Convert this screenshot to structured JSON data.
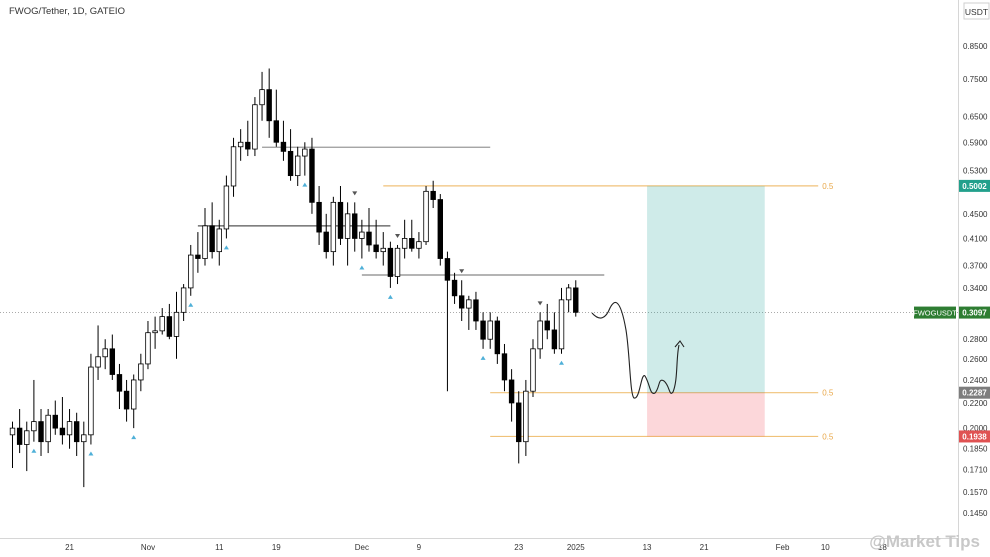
{
  "header": {
    "title": "FWOG/Tether, 1D, GATEIO"
  },
  "quote_currency": "USDT",
  "watermark": "@Market Tips",
  "chart_data": {
    "type": "candlestick",
    "title": "FWOG/Tether, 1D, GATEIO",
    "y_scale": "log",
    "ylim": [
      0.135,
      0.93
    ],
    "y_ticks": [
      "0.8500",
      "0.7500",
      "0.6500",
      "0.5900",
      "0.5300",
      "0.4500",
      "0.4100",
      "0.3700",
      "0.3400",
      "0.3097",
      "0.2800",
      "0.2600",
      "0.2400",
      "0.2200",
      "0.2000",
      "0.1850",
      "0.1710",
      "0.1570",
      "0.1450"
    ],
    "x_labels": [
      {
        "label": "21",
        "day": 8
      },
      {
        "label": "Nov",
        "day": 19
      },
      {
        "label": "11",
        "day": 29
      },
      {
        "label": "19",
        "day": 37
      },
      {
        "label": "Dec",
        "day": 49
      },
      {
        "label": "9",
        "day": 57
      },
      {
        "label": "23",
        "day": 71
      },
      {
        "label": "2025",
        "day": 79
      },
      {
        "label": "13",
        "day": 89
      },
      {
        "label": "21",
        "day": 97
      },
      {
        "label": "Feb",
        "day": 108
      },
      {
        "label": "10",
        "day": 114
      },
      {
        "label": "18",
        "day": 122
      }
    ],
    "candles": [
      [
        0.195,
        0.205,
        0.172,
        0.2
      ],
      [
        0.2,
        0.215,
        0.182,
        0.188
      ],
      [
        0.188,
        0.205,
        0.17,
        0.198
      ],
      [
        0.198,
        0.24,
        0.19,
        0.205
      ],
      [
        0.205,
        0.215,
        0.18,
        0.19
      ],
      [
        0.19,
        0.215,
        0.182,
        0.21
      ],
      [
        0.21,
        0.222,
        0.195,
        0.2
      ],
      [
        0.2,
        0.225,
        0.188,
        0.195
      ],
      [
        0.195,
        0.215,
        0.185,
        0.205
      ],
      [
        0.205,
        0.212,
        0.18,
        0.19
      ],
      [
        0.19,
        0.205,
        0.16,
        0.195
      ],
      [
        0.195,
        0.265,
        0.188,
        0.252
      ],
      [
        0.252,
        0.295,
        0.24,
        0.262
      ],
      [
        0.262,
        0.28,
        0.25,
        0.27
      ],
      [
        0.27,
        0.285,
        0.24,
        0.245
      ],
      [
        0.245,
        0.255,
        0.215,
        0.23
      ],
      [
        0.23,
        0.24,
        0.205,
        0.215
      ],
      [
        0.215,
        0.245,
        0.2,
        0.24
      ],
      [
        0.24,
        0.265,
        0.23,
        0.255
      ],
      [
        0.255,
        0.3,
        0.25,
        0.287
      ],
      [
        0.287,
        0.305,
        0.27,
        0.289
      ],
      [
        0.289,
        0.315,
        0.285,
        0.305
      ],
      [
        0.305,
        0.32,
        0.28,
        0.283
      ],
      [
        0.283,
        0.335,
        0.26,
        0.31
      ],
      [
        0.31,
        0.345,
        0.3,
        0.34
      ],
      [
        0.34,
        0.4,
        0.33,
        0.385
      ],
      [
        0.385,
        0.42,
        0.36,
        0.38
      ],
      [
        0.38,
        0.46,
        0.37,
        0.43
      ],
      [
        0.43,
        0.47,
        0.38,
        0.39
      ],
      [
        0.39,
        0.44,
        0.37,
        0.425
      ],
      [
        0.425,
        0.52,
        0.41,
        0.5
      ],
      [
        0.5,
        0.6,
        0.48,
        0.58
      ],
      [
        0.58,
        0.62,
        0.55,
        0.59
      ],
      [
        0.59,
        0.64,
        0.56,
        0.575
      ],
      [
        0.575,
        0.7,
        0.56,
        0.68
      ],
      [
        0.68,
        0.77,
        0.64,
        0.72
      ],
      [
        0.72,
        0.78,
        0.6,
        0.64
      ],
      [
        0.64,
        0.72,
        0.58,
        0.59
      ],
      [
        0.59,
        0.64,
        0.55,
        0.57
      ],
      [
        0.57,
        0.62,
        0.51,
        0.52
      ],
      [
        0.52,
        0.58,
        0.5,
        0.56
      ],
      [
        0.56,
        0.59,
        0.52,
        0.575
      ],
      [
        0.575,
        0.6,
        0.45,
        0.47
      ],
      [
        0.47,
        0.5,
        0.4,
        0.42
      ],
      [
        0.42,
        0.45,
        0.38,
        0.39
      ],
      [
        0.39,
        0.48,
        0.37,
        0.47
      ],
      [
        0.47,
        0.5,
        0.4,
        0.41
      ],
      [
        0.41,
        0.47,
        0.37,
        0.45
      ],
      [
        0.45,
        0.47,
        0.39,
        0.41
      ],
      [
        0.41,
        0.44,
        0.38,
        0.42
      ],
      [
        0.42,
        0.46,
        0.39,
        0.4
      ],
      [
        0.4,
        0.44,
        0.38,
        0.39
      ],
      [
        0.39,
        0.42,
        0.37,
        0.395
      ],
      [
        0.395,
        0.405,
        0.34,
        0.355
      ],
      [
        0.355,
        0.4,
        0.345,
        0.395
      ],
      [
        0.395,
        0.44,
        0.38,
        0.41
      ],
      [
        0.41,
        0.44,
        0.39,
        0.395
      ],
      [
        0.395,
        0.42,
        0.38,
        0.405
      ],
      [
        0.405,
        0.5,
        0.4,
        0.49
      ],
      [
        0.49,
        0.51,
        0.46,
        0.475
      ],
      [
        0.475,
        0.485,
        0.37,
        0.38
      ],
      [
        0.38,
        0.39,
        0.23,
        0.35
      ],
      [
        0.35,
        0.36,
        0.32,
        0.33
      ],
      [
        0.33,
        0.35,
        0.3,
        0.315
      ],
      [
        0.315,
        0.33,
        0.29,
        0.325
      ],
      [
        0.325,
        0.335,
        0.29,
        0.3
      ],
      [
        0.3,
        0.31,
        0.27,
        0.28
      ],
      [
        0.28,
        0.31,
        0.27,
        0.3
      ],
      [
        0.3,
        0.305,
        0.255,
        0.265
      ],
      [
        0.265,
        0.275,
        0.23,
        0.24
      ],
      [
        0.24,
        0.25,
        0.205,
        0.22
      ],
      [
        0.22,
        0.23,
        0.175,
        0.19
      ],
      [
        0.19,
        0.24,
        0.18,
        0.23
      ],
      [
        0.23,
        0.28,
        0.225,
        0.27
      ],
      [
        0.27,
        0.31,
        0.26,
        0.3
      ],
      [
        0.3,
        0.32,
        0.28,
        0.29
      ],
      [
        0.29,
        0.31,
        0.265,
        0.27
      ],
      [
        0.27,
        0.34,
        0.265,
        0.325
      ],
      [
        0.325,
        0.345,
        0.31,
        0.34
      ],
      [
        0.34,
        0.35,
        0.305,
        0.31
      ]
    ],
    "horizontal_levels": [
      {
        "price": 0.579,
        "from_day": 35,
        "to_day": 67,
        "color": "#9a9a9a"
      },
      {
        "price": 0.43,
        "from_day": 26,
        "to_day": 53,
        "color": "#555555"
      },
      {
        "price": 0.357,
        "from_day": 49,
        "to_day": 83,
        "color": "#888888"
      },
      {
        "price": 0.5002,
        "from_day": 52,
        "to_day": 113,
        "color": "#f0c27a",
        "label": "0.5"
      },
      {
        "price": 0.2287,
        "from_day": 67,
        "to_day": 113,
        "color": "#f0c27a",
        "label": "0.5"
      },
      {
        "price": 0.1938,
        "from_day": 67,
        "to_day": 113,
        "color": "#f0c27a",
        "label": "0.5"
      }
    ],
    "position": {
      "from_day": 89,
      "to_day": 105.5,
      "target": 0.5002,
      "entry": 0.2287,
      "stop": 0.1938
    },
    "price_labels": [
      {
        "text": "0.5002",
        "price": 0.5002,
        "color": "#22a08c"
      },
      {
        "text": "0.3097",
        "price": 0.3097,
        "color": "#2e7d32"
      },
      {
        "text": "0.2287",
        "price": 0.2287,
        "color": "#7d7d7d"
      },
      {
        "text": "0.1938",
        "price": 0.1938,
        "color": "#e05252"
      }
    ],
    "current_price": {
      "symbol": "FWOGUSDT",
      "value": 0.3097
    },
    "fractal_up_days": [
      3,
      11,
      17,
      25,
      30,
      41,
      49,
      53,
      66,
      77
    ],
    "fractal_down_days": [
      48,
      54,
      63,
      74
    ]
  }
}
